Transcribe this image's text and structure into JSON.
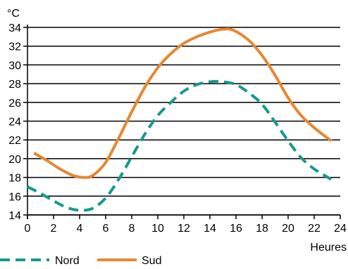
{
  "chart_data": {
    "type": "line",
    "xlabel": "Heures",
    "ylabel": "°C",
    "xlim": [
      0,
      24
    ],
    "ylim": [
      14,
      34
    ],
    "x_ticks": [
      0,
      2,
      4,
      6,
      8,
      10,
      12,
      14,
      16,
      18,
      20,
      22,
      24
    ],
    "y_ticks": [
      14,
      16,
      18,
      20,
      22,
      24,
      26,
      28,
      30,
      32,
      34
    ],
    "grid": "horizontal",
    "legend_position": "bottom-left",
    "series": [
      {
        "name": "Nord",
        "style": "dashed",
        "color": "#159a8c",
        "x": [
          0,
          1,
          2,
          3,
          4,
          5,
          6,
          7,
          8,
          9,
          10,
          11,
          12,
          13,
          14,
          15,
          16,
          17,
          18,
          19,
          20,
          21,
          22,
          23.3
        ],
        "values": [
          17,
          16.3,
          15.5,
          14.8,
          14.5,
          14.7,
          15.8,
          17.8,
          20.2,
          22.6,
          24.6,
          26,
          27.2,
          27.9,
          28.2,
          28.2,
          27.9,
          27,
          25.8,
          23.9,
          21.9,
          20.1,
          18.9,
          17.8
        ]
      },
      {
        "name": "Sud",
        "style": "solid",
        "color": "#e8872f",
        "x": [
          0.5,
          1.5,
          2.5,
          3.5,
          4.3,
          5,
          6,
          7,
          8,
          9,
          10,
          11,
          12,
          13,
          14,
          15,
          15.8,
          17,
          18,
          19,
          20,
          21,
          22,
          23.3
        ],
        "values": [
          20.6,
          19.8,
          18.9,
          18.2,
          18,
          18.2,
          19.6,
          22.2,
          25,
          27.6,
          29.7,
          31.2,
          32.3,
          33,
          33.5,
          33.8,
          33.7,
          32.6,
          31,
          28.9,
          26.5,
          24.6,
          23.3,
          21.9
        ]
      }
    ]
  }
}
